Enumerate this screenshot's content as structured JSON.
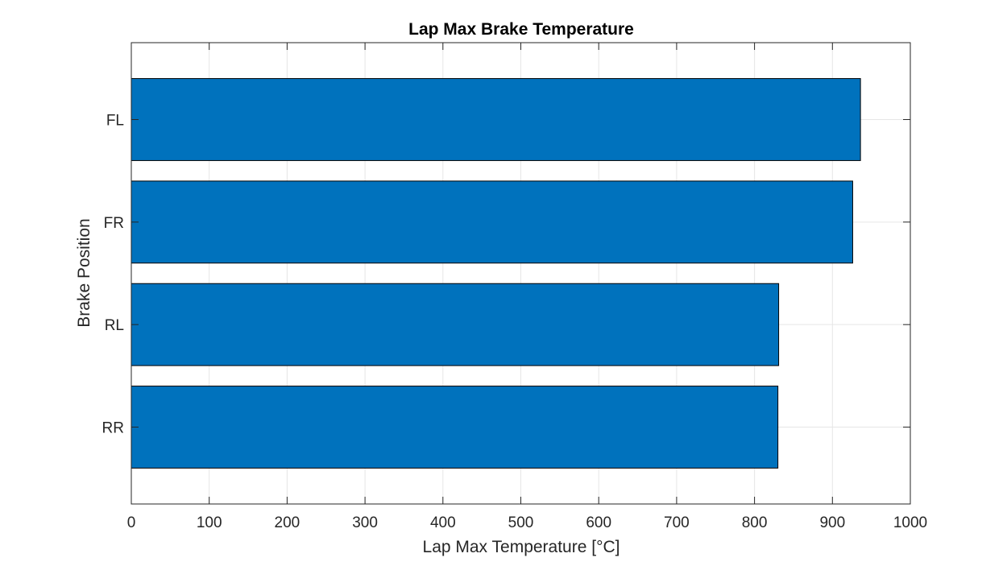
{
  "chart_data": {
    "type": "bar",
    "orientation": "horizontal",
    "title": "Lap Max Brake Temperature",
    "xlabel": "Lap Max Temperature [°C]",
    "ylabel": "Brake Position",
    "categories": [
      "FL",
      "FR",
      "RL",
      "RR"
    ],
    "values": [
      936,
      926,
      831,
      830
    ],
    "xlim": [
      0,
      1000
    ],
    "xticks": [
      0,
      100,
      200,
      300,
      400,
      500,
      600,
      700,
      800,
      900,
      1000
    ],
    "grid": true,
    "bar_color": "#0072BD"
  },
  "colors": {
    "bar": "#0072BD",
    "grid": "#e6e6e6",
    "axis": "#262626"
  }
}
